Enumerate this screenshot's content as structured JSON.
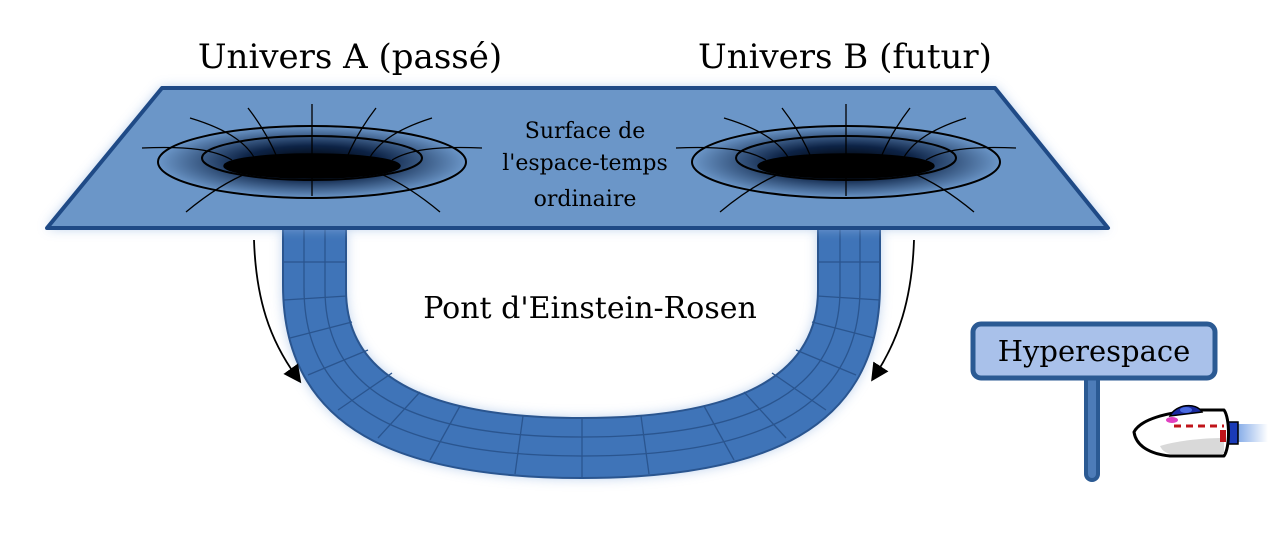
{
  "labels": {
    "universe_a": "Univers A (passé)",
    "universe_b": "Univers B (futur)",
    "surface_line1": "Surface de",
    "surface_line2": "l'espace-temps",
    "surface_line3": "ordinaire",
    "bridge": "Pont d'Einstein-Rosen",
    "sign": "Hyperespace"
  },
  "colors": {
    "sheet_fill": "#6b96c8",
    "sheet_stroke": "#1f4a86",
    "tube_fill": "#3f74b8",
    "tube_dark": "#2a558f",
    "sign_fill": "#a9c1ea",
    "sign_stroke": "#2b5a93"
  },
  "icons": {
    "arrow_left": "curved-arrow-down-icon",
    "arrow_right": "curved-arrow-down-icon",
    "ship": "spaceship-icon"
  }
}
